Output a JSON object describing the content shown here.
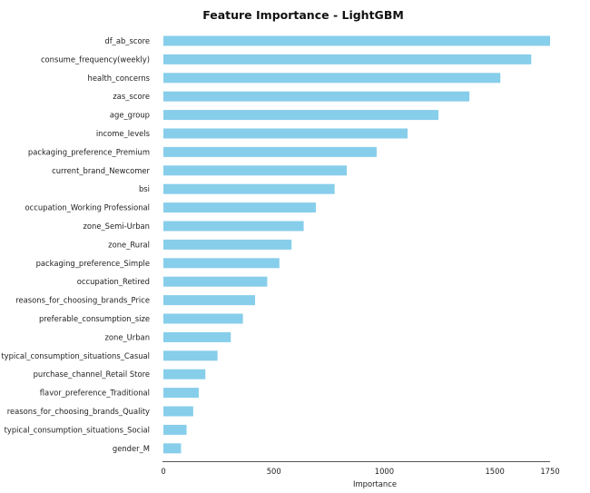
{
  "chart_data": {
    "type": "bar",
    "orientation": "horizontal",
    "title": "Feature Importance - LightGBM",
    "xlabel": "Importance",
    "ylabel": "",
    "xlim": [
      0,
      1750
    ],
    "xticks": [
      0,
      500,
      1000,
      1500,
      1750
    ],
    "grid": false,
    "bar_color": "#87ceeb",
    "categories": [
      "df_ab_score",
      "consume_frequency(weekly)",
      "health_concerns",
      "zas_score",
      "age_group",
      "income_levels",
      "packaging_preference_Premium",
      "current_brand_Newcomer",
      "bsi",
      "occupation_Working Professional",
      "zone_Semi-Urban",
      "zone_Rural",
      "packaging_preference_Simple",
      "occupation_Retired",
      "reasons_for_choosing_brands_Price",
      "preferable_consumption_size",
      "zone_Urban",
      "typical_consumption_situations_Casual",
      "purchase_channel_Retail Store",
      "flavor_preference_Traditional",
      "reasons_for_choosing_brands_Quality",
      "typical_consumption_situations_Social",
      "gender_M"
    ],
    "values": [
      1750,
      1665,
      1525,
      1385,
      1245,
      1105,
      965,
      830,
      775,
      690,
      635,
      580,
      525,
      470,
      415,
      360,
      305,
      245,
      190,
      160,
      135,
      105,
      80
    ]
  }
}
